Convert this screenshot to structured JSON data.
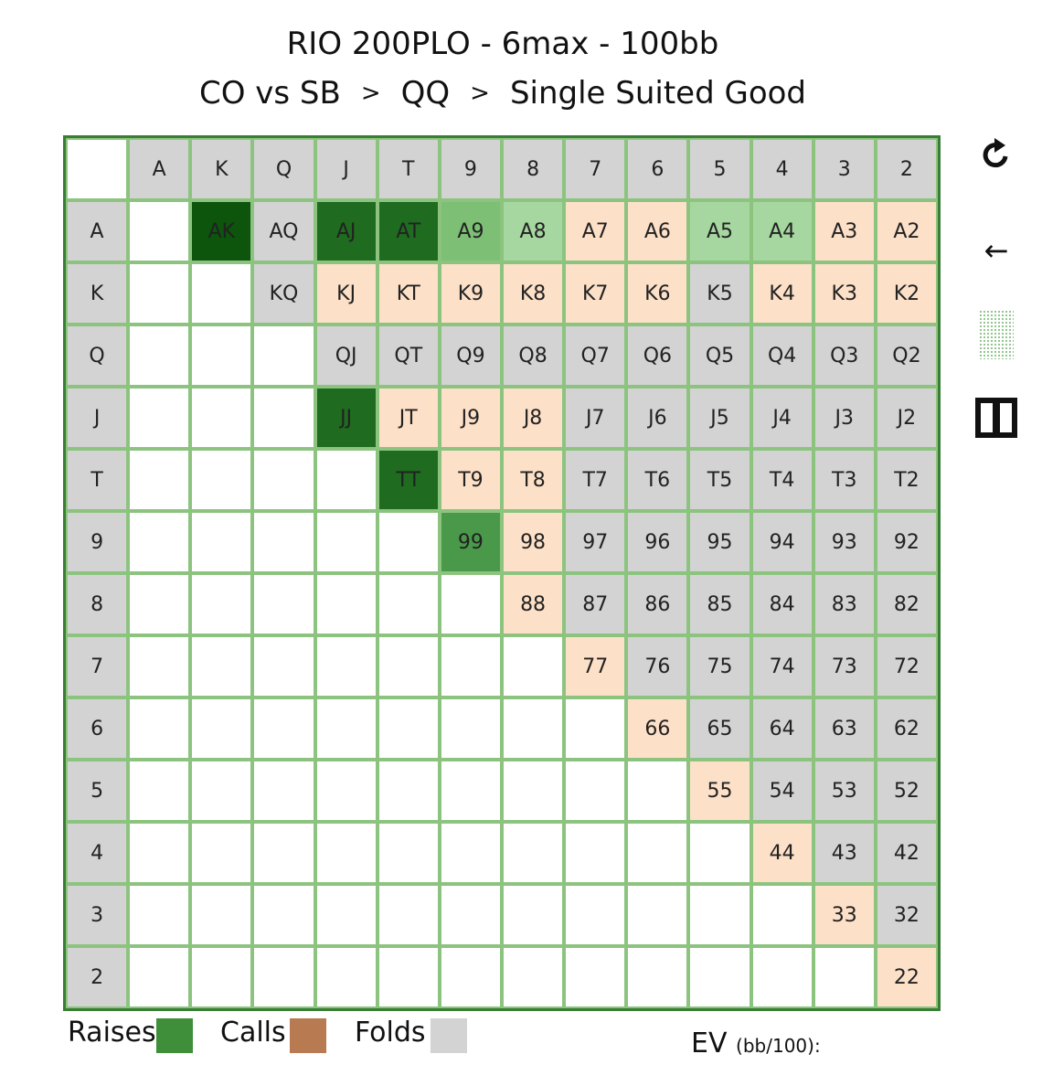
{
  "header": {
    "title": "RIO 200PLO - 6max - 100bb",
    "crumbs": [
      "CO vs SB",
      "QQ",
      "Single Suited Good"
    ],
    "separator": ">"
  },
  "colors": {
    "raise": "#3f8f3a",
    "call": "#b87a50",
    "fold": "#d3d3d3",
    "grid_border": "#3a7d35",
    "grid_line": "#8cc47f",
    "empty": "#ffffff",
    "call_cell": "#fde0c8",
    "raise_100": "#0d540d",
    "raise_90": "#1f6b1f",
    "raise_75": "#4a984a",
    "raise_60": "#7cbf75",
    "raise_45": "#a7d7a0"
  },
  "grid": {
    "ranks": [
      "A",
      "K",
      "Q",
      "J",
      "T",
      "9",
      "8",
      "7",
      "6",
      "5",
      "4",
      "3",
      "2"
    ],
    "rows": [
      [
        [
          "",
          ""
        ],
        [
          "AK",
          "r100"
        ],
        [
          "AQ",
          "f"
        ],
        [
          "AJ",
          "r90"
        ],
        [
          "AT",
          "r90"
        ],
        [
          "A9",
          "r60"
        ],
        [
          "A8",
          "r45"
        ],
        [
          "A7",
          "c"
        ],
        [
          "A6",
          "c"
        ],
        [
          "A5",
          "r45"
        ],
        [
          "A4",
          "r45"
        ],
        [
          "A3",
          "c"
        ],
        [
          "A2",
          "c"
        ]
      ],
      [
        [
          "",
          ""
        ],
        [
          "",
          ""
        ],
        [
          "KQ",
          "f"
        ],
        [
          "KJ",
          "c"
        ],
        [
          "KT",
          "c"
        ],
        [
          "K9",
          "c"
        ],
        [
          "K8",
          "c"
        ],
        [
          "K7",
          "c"
        ],
        [
          "K6",
          "c"
        ],
        [
          "K5",
          "f"
        ],
        [
          "K4",
          "c"
        ],
        [
          "K3",
          "c"
        ],
        [
          "K2",
          "c"
        ]
      ],
      [
        [
          "",
          ""
        ],
        [
          "",
          ""
        ],
        [
          "",
          ""
        ],
        [
          "QJ",
          "f"
        ],
        [
          "QT",
          "f"
        ],
        [
          "Q9",
          "f"
        ],
        [
          "Q8",
          "f"
        ],
        [
          "Q7",
          "f"
        ],
        [
          "Q6",
          "f"
        ],
        [
          "Q5",
          "f"
        ],
        [
          "Q4",
          "f"
        ],
        [
          "Q3",
          "f"
        ],
        [
          "Q2",
          "f"
        ]
      ],
      [
        [
          "",
          ""
        ],
        [
          "",
          ""
        ],
        [
          "",
          ""
        ],
        [
          "JJ",
          "r90"
        ],
        [
          "JT",
          "c"
        ],
        [
          "J9",
          "c"
        ],
        [
          "J8",
          "c"
        ],
        [
          "J7",
          "f"
        ],
        [
          "J6",
          "f"
        ],
        [
          "J5",
          "f"
        ],
        [
          "J4",
          "f"
        ],
        [
          "J3",
          "f"
        ],
        [
          "J2",
          "f"
        ]
      ],
      [
        [
          "",
          ""
        ],
        [
          "",
          ""
        ],
        [
          "",
          ""
        ],
        [
          "",
          ""
        ],
        [
          "TT",
          "r90"
        ],
        [
          "T9",
          "c"
        ],
        [
          "T8",
          "c"
        ],
        [
          "T7",
          "f"
        ],
        [
          "T6",
          "f"
        ],
        [
          "T5",
          "f"
        ],
        [
          "T4",
          "f"
        ],
        [
          "T3",
          "f"
        ],
        [
          "T2",
          "f"
        ]
      ],
      [
        [
          "",
          ""
        ],
        [
          "",
          ""
        ],
        [
          "",
          ""
        ],
        [
          "",
          ""
        ],
        [
          "",
          ""
        ],
        [
          "99",
          "r75"
        ],
        [
          "98",
          "c"
        ],
        [
          "97",
          "f"
        ],
        [
          "96",
          "f"
        ],
        [
          "95",
          "f"
        ],
        [
          "94",
          "f"
        ],
        [
          "93",
          "f"
        ],
        [
          "92",
          "f"
        ]
      ],
      [
        [
          "",
          ""
        ],
        [
          "",
          ""
        ],
        [
          "",
          ""
        ],
        [
          "",
          ""
        ],
        [
          "",
          ""
        ],
        [
          "",
          ""
        ],
        [
          "88",
          "c"
        ],
        [
          "87",
          "f"
        ],
        [
          "86",
          "f"
        ],
        [
          "85",
          "f"
        ],
        [
          "84",
          "f"
        ],
        [
          "83",
          "f"
        ],
        [
          "82",
          "f"
        ]
      ],
      [
        [
          "",
          ""
        ],
        [
          "",
          ""
        ],
        [
          "",
          ""
        ],
        [
          "",
          ""
        ],
        [
          "",
          ""
        ],
        [
          "",
          ""
        ],
        [
          "",
          ""
        ],
        [
          "77",
          "c"
        ],
        [
          "76",
          "f"
        ],
        [
          "75",
          "f"
        ],
        [
          "74",
          "f"
        ],
        [
          "73",
          "f"
        ],
        [
          "72",
          "f"
        ]
      ],
      [
        [
          "",
          ""
        ],
        [
          "",
          ""
        ],
        [
          "",
          ""
        ],
        [
          "",
          ""
        ],
        [
          "",
          ""
        ],
        [
          "",
          ""
        ],
        [
          "",
          ""
        ],
        [
          "",
          ""
        ],
        [
          "66",
          "c"
        ],
        [
          "65",
          "f"
        ],
        [
          "64",
          "f"
        ],
        [
          "63",
          "f"
        ],
        [
          "62",
          "f"
        ]
      ],
      [
        [
          "",
          ""
        ],
        [
          "",
          ""
        ],
        [
          "",
          ""
        ],
        [
          "",
          ""
        ],
        [
          "",
          ""
        ],
        [
          "",
          ""
        ],
        [
          "",
          ""
        ],
        [
          "",
          ""
        ],
        [
          "",
          ""
        ],
        [
          "55",
          "c"
        ],
        [
          "54",
          "f"
        ],
        [
          "53",
          "f"
        ],
        [
          "52",
          "f"
        ]
      ],
      [
        [
          "",
          ""
        ],
        [
          "",
          ""
        ],
        [
          "",
          ""
        ],
        [
          "",
          ""
        ],
        [
          "",
          ""
        ],
        [
          "",
          ""
        ],
        [
          "",
          ""
        ],
        [
          "",
          ""
        ],
        [
          "",
          ""
        ],
        [
          "",
          ""
        ],
        [
          "44",
          "c"
        ],
        [
          "43",
          "f"
        ],
        [
          "42",
          "f"
        ]
      ],
      [
        [
          "",
          ""
        ],
        [
          "",
          ""
        ],
        [
          "",
          ""
        ],
        [
          "",
          ""
        ],
        [
          "",
          ""
        ],
        [
          "",
          ""
        ],
        [
          "",
          ""
        ],
        [
          "",
          ""
        ],
        [
          "",
          ""
        ],
        [
          "",
          ""
        ],
        [
          "",
          ""
        ],
        [
          "33",
          "c"
        ],
        [
          "32",
          "f"
        ]
      ],
      [
        [
          "",
          ""
        ],
        [
          "",
          ""
        ],
        [
          "",
          ""
        ],
        [
          "",
          ""
        ],
        [
          "",
          ""
        ],
        [
          "",
          ""
        ],
        [
          "",
          ""
        ],
        [
          "",
          ""
        ],
        [
          "",
          ""
        ],
        [
          "",
          ""
        ],
        [
          "",
          ""
        ],
        [
          "",
          ""
        ],
        [
          "22",
          "c"
        ]
      ]
    ]
  },
  "sidebar": {
    "reset_icon": "rotate-icon",
    "back_icon": "arrow-left-icon",
    "pattern_icon": "dotted-pattern-icon",
    "pause_icon": "pause-icon",
    "back_glyph": "←"
  },
  "legend": {
    "raises": "Raises",
    "calls": "Calls",
    "folds": "Folds",
    "ev_label": "EV",
    "ev_unit": "(bb/100):"
  }
}
